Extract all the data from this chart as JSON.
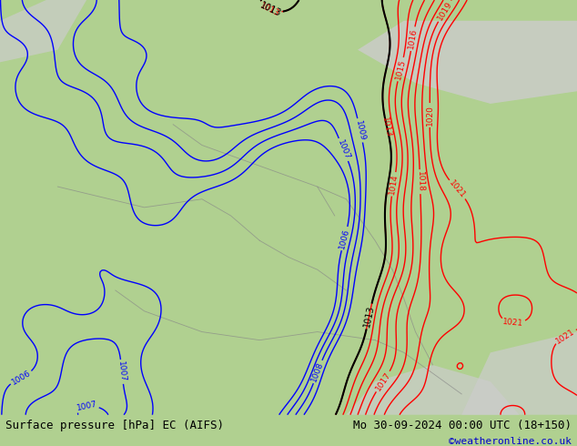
{
  "title_left": "Surface pressure [hPa] EC (AIFS)",
  "title_right": "Mo 30-09-2024 00:00 UTC (18+150)",
  "credit": "©weatheronline.co.uk",
  "bg_color": "#b0d090",
  "land_color": "#b0d090",
  "sea_color": "#b0d090",
  "grey_color": "#cccccc",
  "blue_color": "#0000ff",
  "red_color": "#ff0000",
  "black_color": "#000000",
  "bottom_bar_color": "#c8c8c8",
  "bottom_text_color": "#000000",
  "credit_color": "#0000cc",
  "figwidth": 6.34,
  "figheight": 4.9,
  "dpi": 100
}
